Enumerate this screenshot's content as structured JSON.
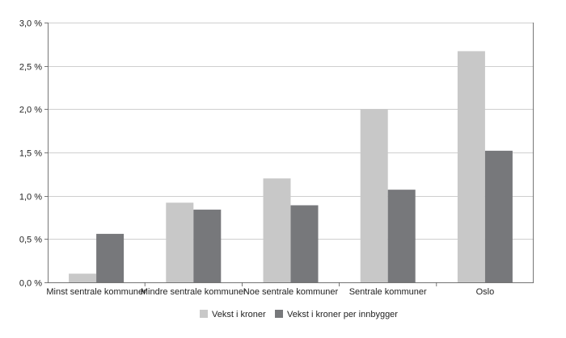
{
  "chart_data": {
    "type": "bar",
    "categories": [
      "Minst sentrale kommuner",
      "Mindre sentrale kommuner",
      "Noe sentrale kommuner",
      "Sentrale kommuner",
      "Oslo"
    ],
    "series": [
      {
        "name": "Vekst i kroner",
        "color": "#c8c8c8",
        "values": [
          0.1,
          0.92,
          1.2,
          2.0,
          2.67
        ]
      },
      {
        "name": "Vekst i kroner per innbygger",
        "color": "#77787b",
        "values": [
          0.56,
          0.84,
          0.89,
          1.07,
          1.52
        ]
      }
    ],
    "ylim": [
      0,
      3.0
    ],
    "yticks": [
      0.0,
      0.5,
      1.0,
      1.5,
      2.0,
      2.5,
      3.0
    ],
    "ytick_labels": [
      "0,0 %",
      "0,5 %",
      "1,0 %",
      "1,5 %",
      "2,0 %",
      "2,5 %",
      "3,0 %"
    ],
    "grid": true,
    "legend_position": "bottom",
    "title": "",
    "xlabel": "",
    "ylabel": ""
  }
}
